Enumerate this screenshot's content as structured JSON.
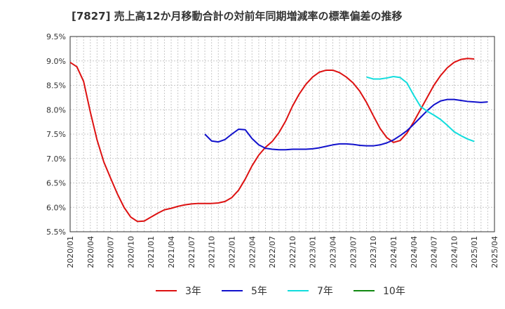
{
  "chart_data": {
    "type": "line",
    "title": "[7827]  売上高12か月移動合計の対前年同期増減率の標準偏差の推移",
    "xlabel": "",
    "ylabel": "",
    "ylim": [
      5.5,
      9.5
    ],
    "yticks": [
      "5.5%",
      "6.0%",
      "6.5%",
      "7.0%",
      "7.5%",
      "8.0%",
      "8.5%",
      "9.0%",
      "9.5%"
    ],
    "yticks_values": [
      5.5,
      6.0,
      6.5,
      7.0,
      7.5,
      8.0,
      8.5,
      9.0,
      9.5
    ],
    "xticks": [
      "2020/01",
      "2020/04",
      "2020/07",
      "2020/10",
      "2021/01",
      "2021/04",
      "2021/07",
      "2021/10",
      "2022/01",
      "2022/04",
      "2022/07",
      "2022/10",
      "2023/01",
      "2023/04",
      "2023/07",
      "2023/10",
      "2024/01",
      "2024/04",
      "2024/07",
      "2024/10",
      "2025/01",
      "2025/04"
    ],
    "grid": true,
    "legend_position": "bottom",
    "series": [
      {
        "name": "3年",
        "color": "#dd1111",
        "start": "2020/01",
        "values": [
          8.97,
          8.88,
          8.58,
          7.95,
          7.38,
          6.93,
          6.6,
          6.28,
          6.0,
          5.8,
          5.71,
          5.72,
          5.8,
          5.88,
          5.95,
          5.98,
          6.02,
          6.05,
          6.07,
          6.08,
          6.08,
          6.08,
          6.09,
          6.12,
          6.2,
          6.35,
          6.58,
          6.85,
          7.07,
          7.23,
          7.35,
          7.53,
          7.77,
          8.07,
          8.32,
          8.52,
          8.67,
          8.77,
          8.81,
          8.81,
          8.76,
          8.67,
          8.55,
          8.38,
          8.15,
          7.88,
          7.62,
          7.43,
          7.33,
          7.37,
          7.52,
          7.75,
          8.0,
          8.25,
          8.5,
          8.7,
          8.86,
          8.97,
          9.03,
          9.05,
          9.04
        ]
      },
      {
        "name": "5年",
        "color": "#1111cc",
        "start": "2021/09",
        "values": [
          7.5,
          7.36,
          7.34,
          7.39,
          7.5,
          7.6,
          7.59,
          7.41,
          7.28,
          7.21,
          7.19,
          7.18,
          7.18,
          7.19,
          7.19,
          7.19,
          7.2,
          7.22,
          7.25,
          7.28,
          7.3,
          7.3,
          7.29,
          7.27,
          7.26,
          7.26,
          7.28,
          7.32,
          7.38,
          7.47,
          7.57,
          7.7,
          7.84,
          7.98,
          8.1,
          8.18,
          8.21,
          8.21,
          8.19,
          8.17,
          8.16,
          8.15,
          8.16
        ]
      },
      {
        "name": "7年",
        "color": "#11dddd",
        "start": "2023/09",
        "values": [
          8.67,
          8.63,
          8.63,
          8.65,
          8.68,
          8.66,
          8.55,
          8.3,
          8.07,
          7.97,
          7.89,
          7.8,
          7.68,
          7.55,
          7.47,
          7.4,
          7.35
        ]
      },
      {
        "name": "10年",
        "color": "#118811",
        "start": "2025/01",
        "values": []
      }
    ]
  }
}
